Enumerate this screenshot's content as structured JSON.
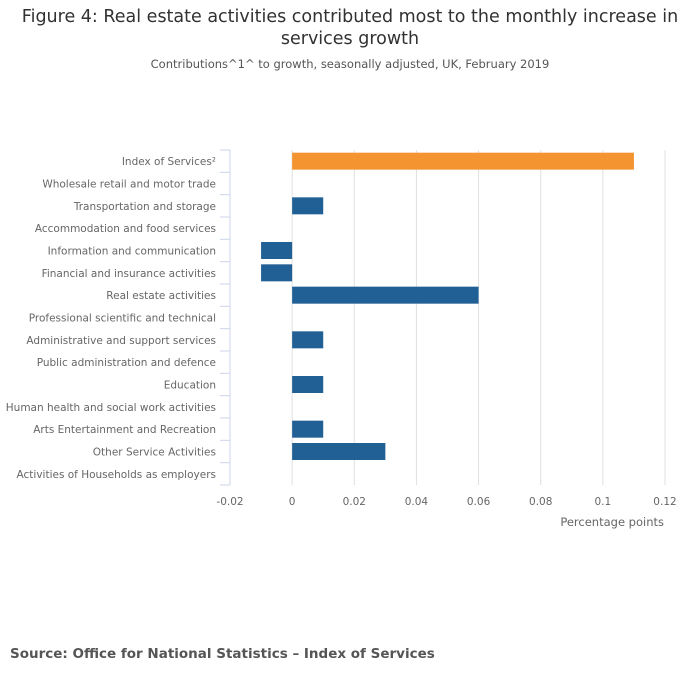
{
  "chart_data": {
    "type": "bar",
    "orientation": "horizontal",
    "title": "Figure 4: Real estate activities contributed most to the monthly increase in services growth",
    "subtitle": "Contributions^1^ to growth, seasonally adjusted, UK, February 2019",
    "xlabel": "Percentage points",
    "ylabel": "",
    "xlim": [
      -0.02,
      0.12
    ],
    "xticks": [
      -0.02,
      0,
      0.02,
      0.04,
      0.06,
      0.08,
      0.1,
      0.12
    ],
    "xtick_labels": [
      "-0.02",
      "0",
      "0.02",
      "0.04",
      "0.06",
      "0.08",
      "0.1",
      "0.12"
    ],
    "grid": true,
    "categories": [
      "Index of Services²",
      "Wholesale retail and motor trade",
      "Transportation and storage",
      "Accommodation and food services",
      "Information and communication",
      "Financial and insurance activities",
      "Real estate activities",
      "Professional scientific and technical",
      "Administrative and support services",
      "Public administration and defence",
      "Education",
      "Human health and social work activities",
      "Arts Entertainment and Recreation",
      "Other Service Activities",
      "Activities of Households as employers"
    ],
    "values": [
      0.11,
      0,
      0.01,
      0,
      -0.01,
      -0.01,
      0.06,
      0,
      0.01,
      0,
      0.01,
      0,
      0.01,
      0.03,
      0
    ],
    "colors": {
      "highlight": "#f39431",
      "default": "#206095",
      "grid": "#e0e0e0",
      "axis": "#ccd6eb"
    }
  },
  "source": "Source: Office for National Statistics – Index of Services"
}
